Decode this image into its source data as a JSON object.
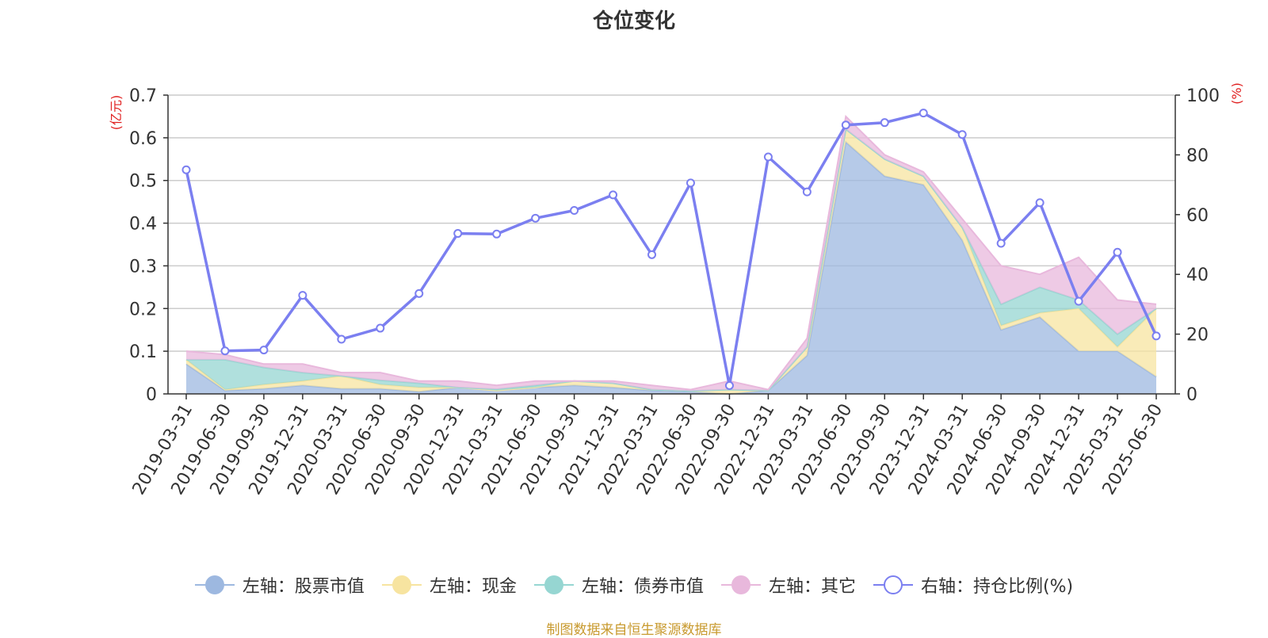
{
  "chart_data": {
    "type": "area",
    "title": "仓位变化",
    "left_axis_unit": "(亿元)",
    "right_axis_unit": "(%)",
    "left_ylim": [
      0,
      0.7
    ],
    "left_ticks": [
      "0",
      "0.1",
      "0.2",
      "0.3",
      "0.4",
      "0.5",
      "0.6",
      "0.7"
    ],
    "right_ylim": [
      0,
      100
    ],
    "right_ticks": [
      "0",
      "20",
      "40",
      "60",
      "80",
      "100"
    ],
    "categories": [
      "2019-03-31",
      "2019-06-30",
      "2019-09-30",
      "2019-12-31",
      "2020-03-31",
      "2020-06-30",
      "2020-09-30",
      "2020-12-31",
      "2021-03-31",
      "2021-06-30",
      "2021-09-30",
      "2021-12-31",
      "2022-03-31",
      "2022-06-30",
      "2022-09-30",
      "2022-12-31",
      "2023-03-31",
      "2023-06-30",
      "2023-09-30",
      "2023-12-31",
      "2024-03-31",
      "2024-06-30",
      "2024-09-30",
      "2024-12-31",
      "2025-03-31",
      "2025-06-30"
    ],
    "stacked_series": [
      {
        "name": "左轴：股票市值",
        "color": "#9db8e0",
        "values": [
          0.07,
          0.008,
          0.012,
          0.02,
          0.012,
          0.012,
          0.005,
          0.015,
          0.008,
          0.015,
          0.02,
          0.015,
          0.008,
          0.005,
          0.0,
          0.008,
          0.09,
          0.59,
          0.51,
          0.49,
          0.36,
          0.15,
          0.18,
          0.1,
          0.1,
          0.04
        ]
      },
      {
        "name": "左轴：现金",
        "color": "#f7e4a0",
        "values": [
          0.01,
          0.002,
          0.01,
          0.01,
          0.03,
          0.01,
          0.01,
          0.0,
          0.0,
          0.0,
          0.01,
          0.01,
          0.002,
          0.002,
          0.01,
          0.0,
          0.02,
          0.03,
          0.04,
          0.02,
          0.03,
          0.01,
          0.01,
          0.1,
          0.01,
          0.16
        ]
      },
      {
        "name": "左轴：债券市值",
        "color": "#96d6d2",
        "values": [
          0.0,
          0.07,
          0.04,
          0.02,
          0.0,
          0.01,
          0.01,
          0.0,
          0.003,
          0.005,
          0.0,
          0.0,
          0.0,
          0.0,
          0.0,
          0.0,
          0.0,
          0.0,
          0.0,
          0.0,
          0.0,
          0.05,
          0.06,
          0.02,
          0.03,
          0.0
        ]
      },
      {
        "name": "左轴：其它",
        "color": "#e8b8dc",
        "values": [
          0.02,
          0.012,
          0.008,
          0.02,
          0.008,
          0.018,
          0.005,
          0.015,
          0.009,
          0.01,
          0.0,
          0.005,
          0.01,
          0.003,
          0.02,
          0.002,
          0.02,
          0.03,
          0.01,
          0.01,
          0.02,
          0.09,
          0.03,
          0.1,
          0.08,
          0.01
        ]
      }
    ],
    "line_series": {
      "name": "右轴：持仓比例(%)",
      "color": "#7b7ff0",
      "values": [
        75.0,
        14.4,
        14.7,
        33.0,
        18.3,
        22.0,
        33.6,
        53.7,
        53.5,
        58.8,
        61.4,
        66.6,
        46.6,
        70.6,
        2.8,
        79.3,
        67.6,
        90.0,
        90.8,
        94.0,
        86.8,
        50.4,
        64.0,
        31.0,
        47.4,
        19.4
      ]
    },
    "legend_position": "bottom",
    "grid": true
  },
  "legend": [
    {
      "label": "左轴：股票市值",
      "color": "#9db8e0",
      "style": "filled"
    },
    {
      "label": "左轴：现金",
      "color": "#f7e4a0",
      "style": "filled"
    },
    {
      "label": "左轴：债券市值",
      "color": "#96d6d2",
      "style": "filled"
    },
    {
      "label": "左轴：其它",
      "color": "#e8b8dc",
      "style": "filled"
    },
    {
      "label": "右轴：持仓比例(%)",
      "color": "#7b7ff0",
      "style": "hollow"
    }
  ],
  "source_text": "制图数据来自恒生聚源数据库"
}
